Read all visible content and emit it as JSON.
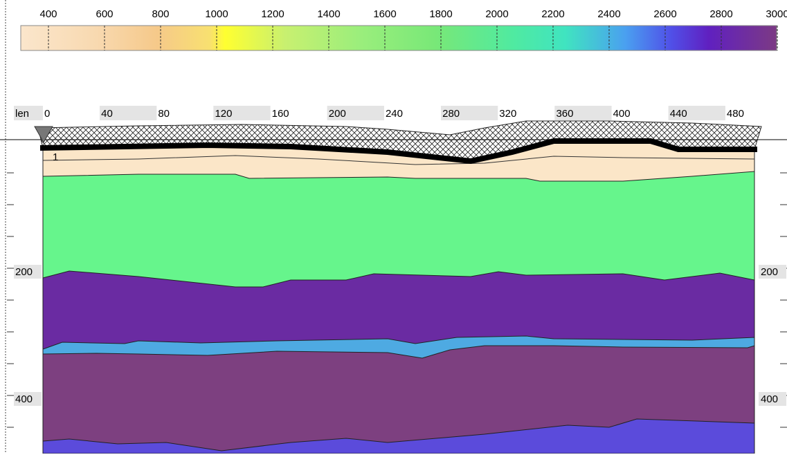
{
  "colorbar": {
    "ticks": [
      400,
      600,
      800,
      1000,
      1200,
      1400,
      1600,
      1800,
      2000,
      2200,
      2400,
      2600,
      2800,
      3000
    ]
  },
  "distance_axis": {
    "label": "len",
    "ticks": [
      0,
      40,
      80,
      120,
      160,
      200,
      240,
      280,
      320,
      360,
      400,
      440,
      480
    ]
  },
  "depth_axis": {
    "ticks": [
      200,
      400
    ]
  },
  "layer_label": "1"
}
